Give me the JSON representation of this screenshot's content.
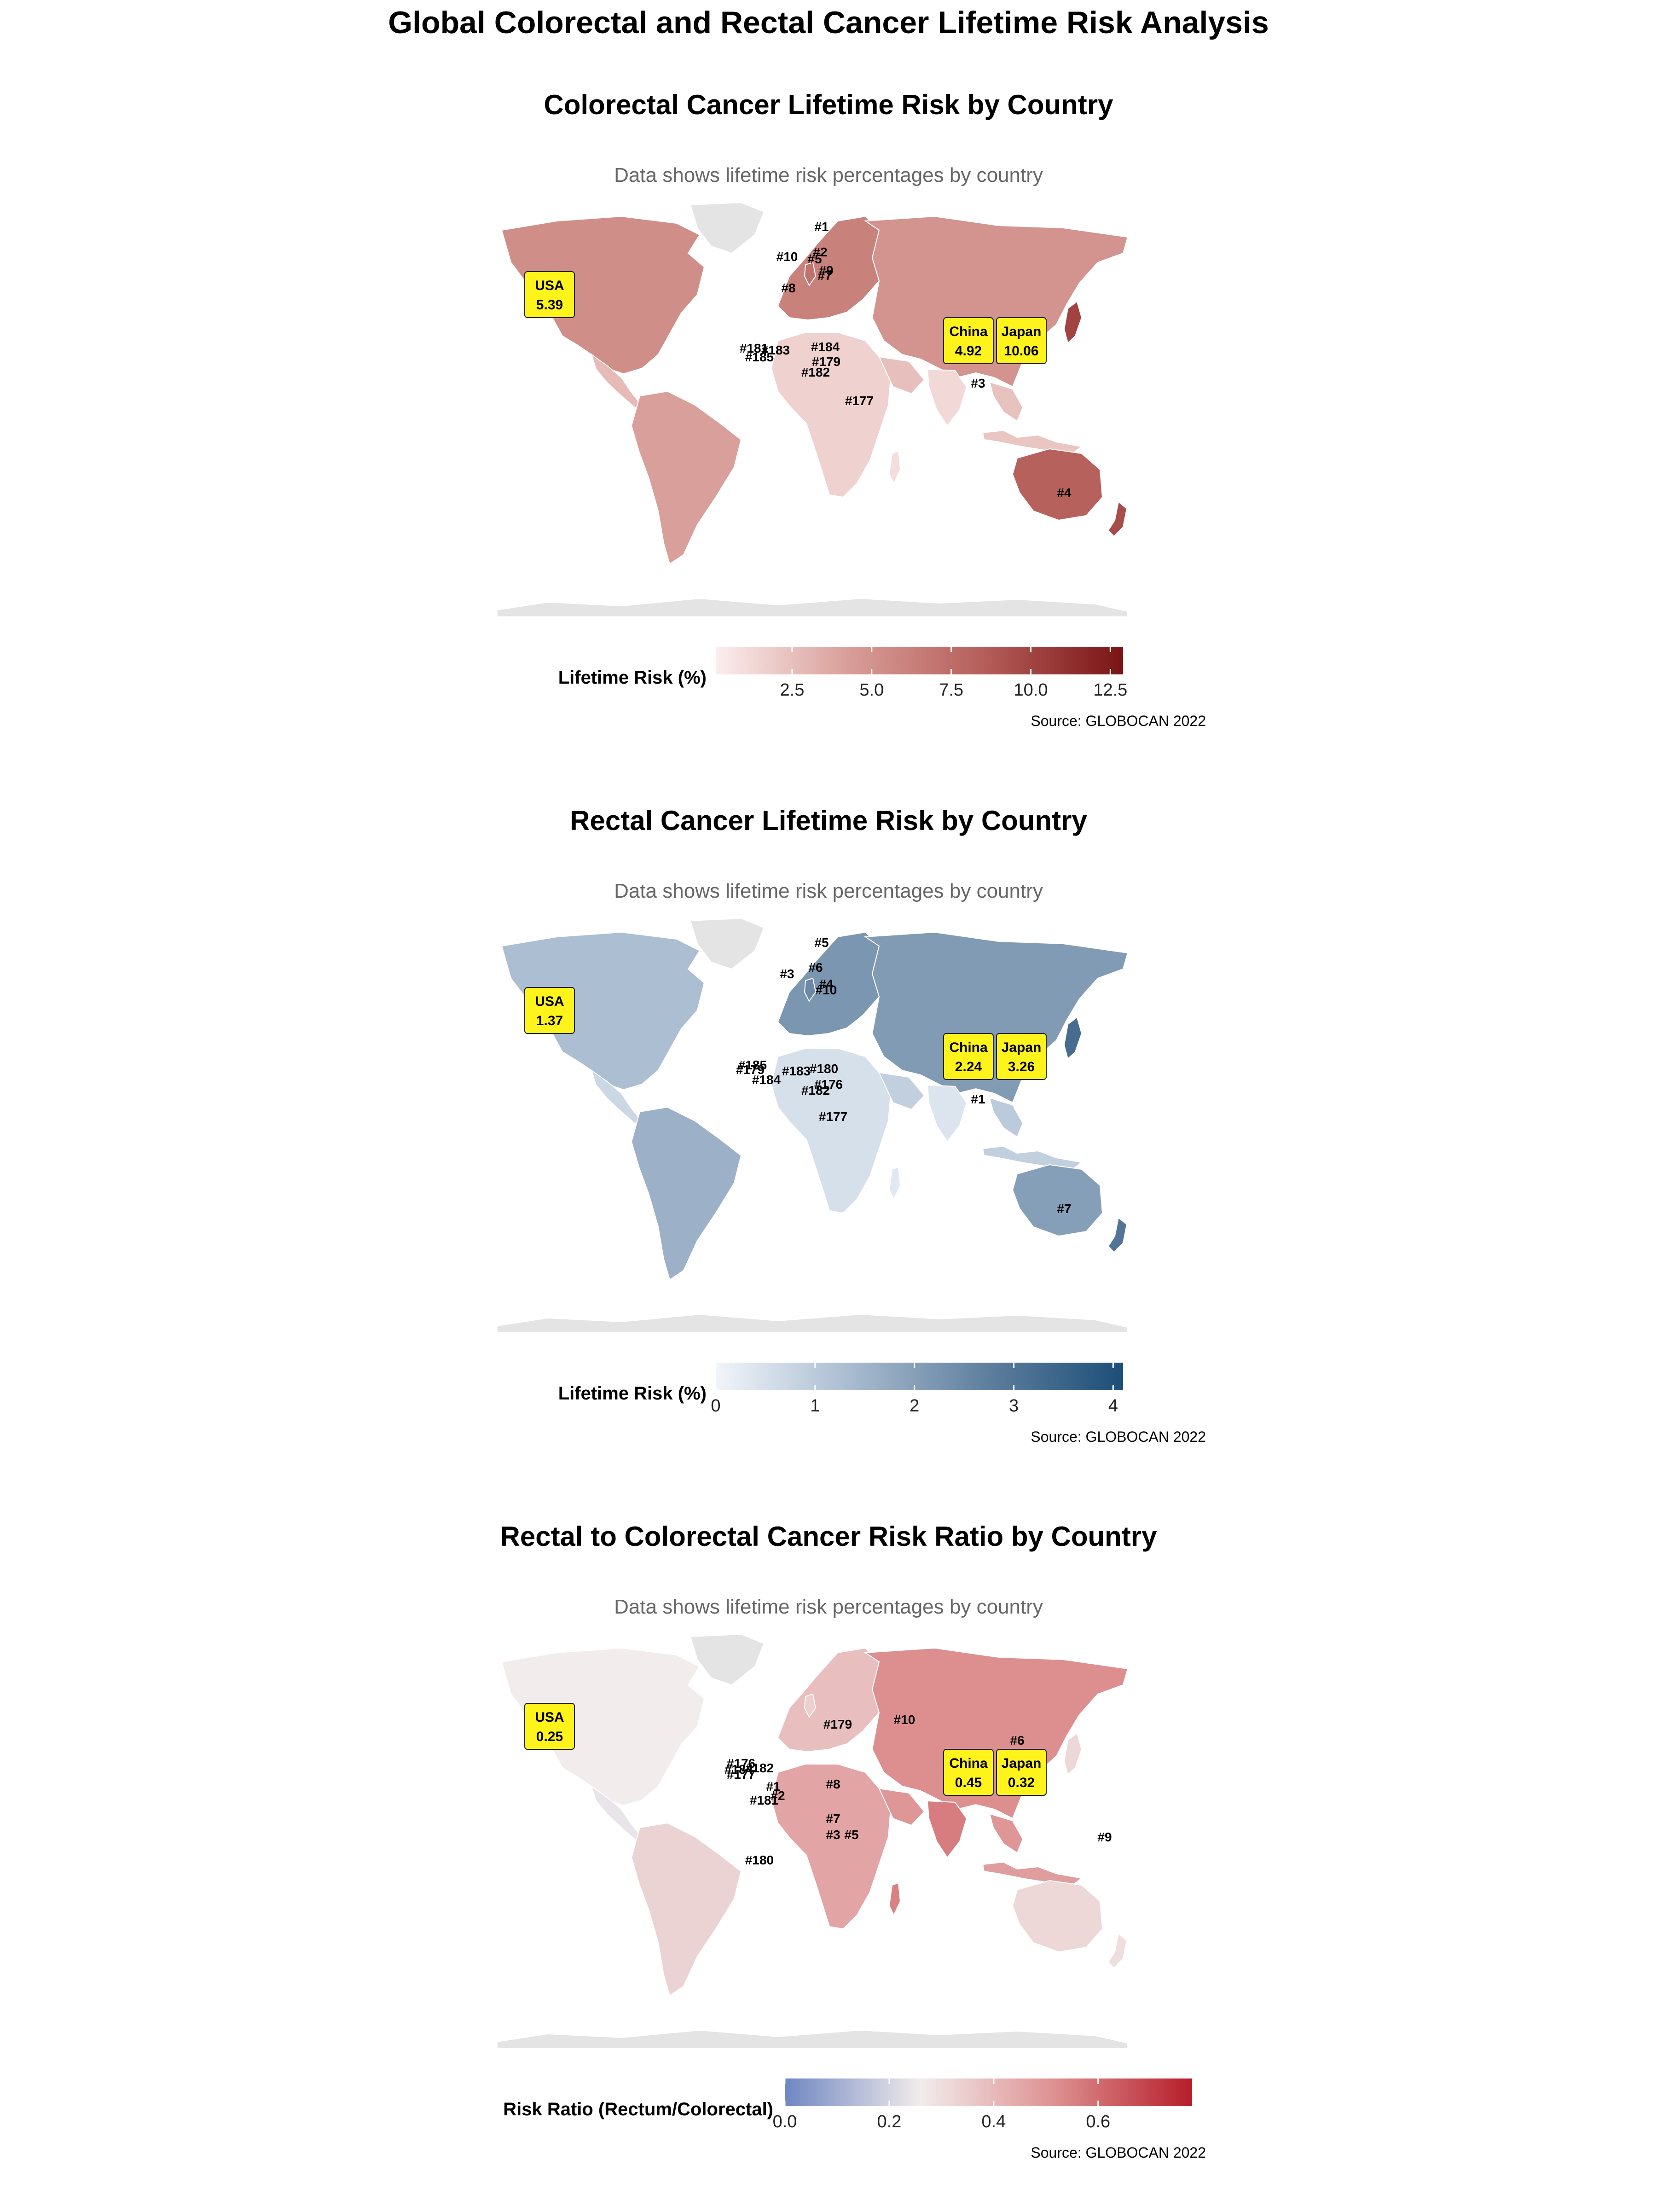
{
  "main_title": "Global Colorectal and Rectal Cancer Lifetime Risk Analysis",
  "colors": {
    "land_no_data": "#e4e4e4",
    "callout_fill": "#fff31c",
    "red_high": "#7a1414",
    "blue_high": "#1d4e78",
    "ratio_low": "#6f86c1",
    "ratio_high": "#b61d2a"
  },
  "panels": [
    {
      "id": "colorectal",
      "title": "Colorectal Cancer Lifetime Risk by Country",
      "subtitle": "Data shows lifetime risk percentages by country",
      "legend_title": "Lifetime Risk (%)",
      "legend_ticks": [
        "2.5",
        "5.0",
        "7.5",
        "10.0",
        "12.5"
      ],
      "legend_range": [
        0.1,
        12.9
      ],
      "legend_tick_values": [
        2.5,
        5.0,
        7.5,
        10.0,
        12.5
      ],
      "legend_colors": [
        "#fbeeee",
        "#d89c97",
        "#b45c58",
        "#7a1414"
      ],
      "source": "Source: GLOBOCAN 2022",
      "callouts": [
        {
          "country": "USA",
          "value": "5.39"
        },
        {
          "country": "China",
          "value": "4.92"
        },
        {
          "country": "Japan",
          "value": "10.06"
        }
      ],
      "rank_labels": [
        "#1",
        "#2",
        "#5",
        "#10",
        "#9",
        "#7",
        "#8",
        "#181",
        "#183",
        "#184",
        "#185",
        "#179",
        "#182",
        "#177",
        "#3",
        "#4"
      ]
    },
    {
      "id": "rectal",
      "title": "Rectal Cancer Lifetime Risk by Country",
      "subtitle": "Data shows lifetime risk percentages by country",
      "legend_title": "Lifetime Risk (%)",
      "legend_ticks": [
        "0",
        "1",
        "2",
        "3",
        "4"
      ],
      "legend_range": [
        0.0,
        4.1
      ],
      "legend_tick_values": [
        0,
        1,
        2,
        3,
        4
      ],
      "legend_colors": [
        "#f1f5fa",
        "#a8bbcf",
        "#5f7f9e",
        "#1d4e78"
      ],
      "source": "Source: GLOBOCAN 2022",
      "callouts": [
        {
          "country": "USA",
          "value": "1.37"
        },
        {
          "country": "China",
          "value": "2.24"
        },
        {
          "country": "Japan",
          "value": "3.26"
        }
      ],
      "rank_labels": [
        "#5",
        "#3",
        "#6",
        "#4",
        "#10",
        "#185",
        "#179",
        "#183",
        "#180",
        "#184",
        "#176",
        "#182",
        "#177",
        "#1",
        "#7"
      ]
    },
    {
      "id": "ratio",
      "title": "Rectal to Colorectal Cancer Risk Ratio by Country",
      "subtitle": "Data shows lifetime risk percentages by country",
      "legend_title": "Risk Ratio (Rectum/Colorectal)",
      "legend_ticks": [
        "0.0",
        "0.2",
        "0.4",
        "0.6"
      ],
      "legend_range": [
        0.0,
        0.78
      ],
      "legend_tick_values": [
        0.0,
        0.2,
        0.4,
        0.6
      ],
      "legend_colors": [
        "#6f86c1",
        "#f2ecec",
        "#dd8f8f",
        "#b61d2a"
      ],
      "source": "Source: GLOBOCAN 2022",
      "callouts": [
        {
          "country": "USA",
          "value": "0.25"
        },
        {
          "country": "China",
          "value": "0.45"
        },
        {
          "country": "Japan",
          "value": "0.32"
        }
      ],
      "rank_labels": [
        "#176",
        "#182",
        "#184",
        "#177",
        "#181",
        "#180",
        "#179",
        "#10",
        "#6",
        "#4",
        "#1",
        "#2",
        "#8",
        "#7",
        "#3",
        "#5",
        "#9"
      ]
    }
  ]
}
